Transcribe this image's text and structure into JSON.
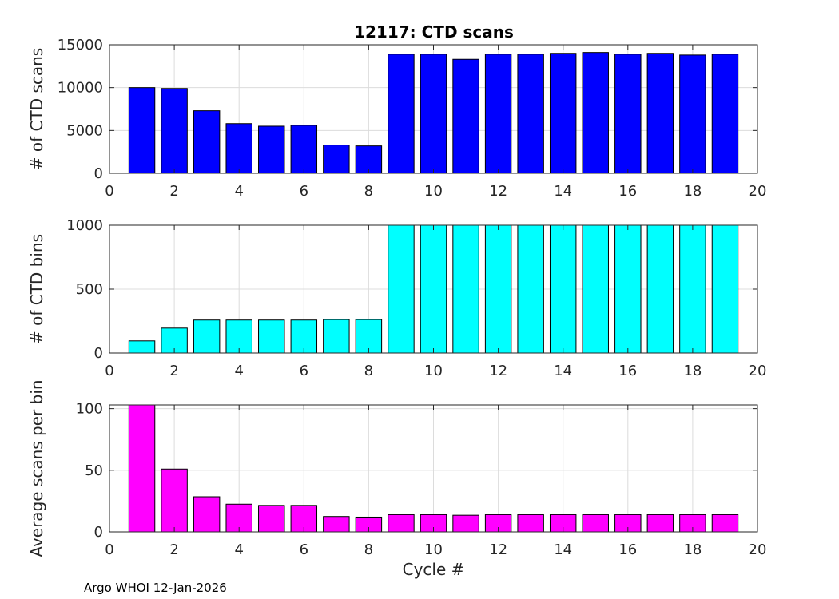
{
  "figure": {
    "title": "12117: CTD scans",
    "footer": "Argo WHOI 12-Jan-2026"
  },
  "chart_data": [
    {
      "type": "bar",
      "title": "12117: CTD scans",
      "xlabel": "",
      "ylabel": "# of CTD scans",
      "color": "#0000ff",
      "xlim": [
        0,
        20
      ],
      "ylim": [
        0,
        15000
      ],
      "xticks": [
        0,
        2,
        4,
        6,
        8,
        10,
        12,
        14,
        16,
        18,
        20
      ],
      "yticks": [
        0,
        5000,
        10000,
        15000
      ],
      "grid": true,
      "x": [
        1,
        2,
        3,
        4,
        5,
        6,
        7,
        8,
        9,
        10,
        11,
        12,
        13,
        14,
        15,
        16,
        17,
        18,
        19
      ],
      "values": [
        10000,
        9900,
        7300,
        5800,
        5500,
        5600,
        3300,
        3200,
        13900,
        13900,
        13300,
        13900,
        13900,
        14000,
        14100,
        13900,
        14000,
        13800,
        13900
      ]
    },
    {
      "type": "bar",
      "title": "",
      "xlabel": "",
      "ylabel": "# of CTD bins",
      "color": "#00ffff",
      "xlim": [
        0,
        20
      ],
      "ylim": [
        0,
        1000
      ],
      "xticks": [
        0,
        2,
        4,
        6,
        8,
        10,
        12,
        14,
        16,
        18,
        20
      ],
      "yticks": [
        0,
        500,
        1000
      ],
      "grid": true,
      "x": [
        1,
        2,
        3,
        4,
        5,
        6,
        7,
        8,
        9,
        10,
        11,
        12,
        13,
        14,
        15,
        16,
        17,
        18,
        19
      ],
      "values": [
        95,
        195,
        258,
        258,
        258,
        258,
        262,
        262,
        1000,
        1000,
        1000,
        1000,
        1000,
        1000,
        1000,
        1000,
        1000,
        1000,
        1000
      ]
    },
    {
      "type": "bar",
      "title": "",
      "xlabel": "Cycle #",
      "ylabel": "Average scans per bin",
      "color": "#ff00ff",
      "xlim": [
        0,
        20
      ],
      "ylim": [
        0,
        103
      ],
      "xticks": [
        0,
        2,
        4,
        6,
        8,
        10,
        12,
        14,
        16,
        18,
        20
      ],
      "yticks": [
        0,
        50,
        100
      ],
      "grid": true,
      "x": [
        1,
        2,
        3,
        4,
        5,
        6,
        7,
        8,
        9,
        10,
        11,
        12,
        13,
        14,
        15,
        16,
        17,
        18,
        19
      ],
      "values": [
        103,
        51,
        28.5,
        22.5,
        21.5,
        21.5,
        12.5,
        12,
        14,
        14,
        13.5,
        14,
        14,
        14,
        14,
        14,
        14,
        14,
        14
      ]
    }
  ]
}
